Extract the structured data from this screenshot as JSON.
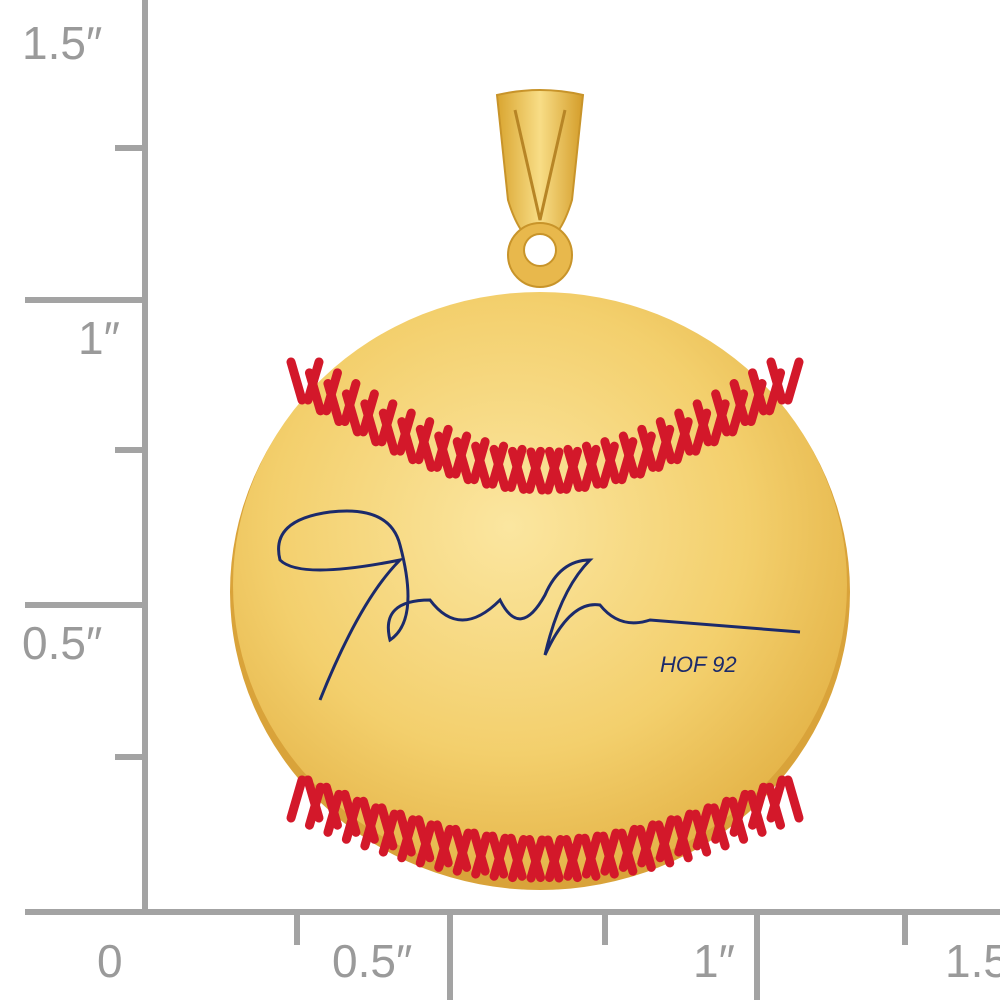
{
  "ruler": {
    "vertical_labels": [
      "1.5″",
      "1″",
      "0.5″"
    ],
    "horizontal_labels": [
      "0",
      "0.5″",
      "1″",
      "1.5"
    ],
    "color": "#a3a3a3"
  },
  "pendant": {
    "engraving": "HOF 92",
    "signature_color": "#1b2a6b",
    "stitch_color": "#d3182a",
    "gold_color": "#f2cf6a"
  }
}
